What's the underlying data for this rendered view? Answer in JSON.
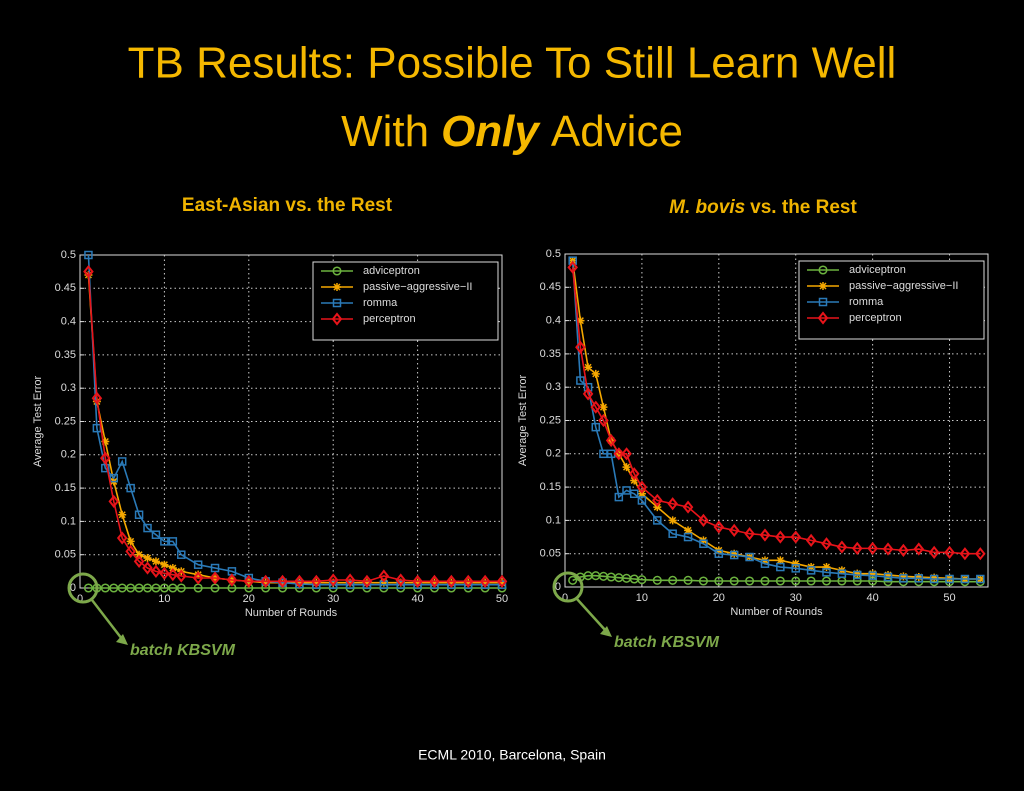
{
  "slide": {
    "title_line1": "TB Results: Possible To Still Learn Well",
    "title_line2": [
      "With",
      "Only",
      "Advice"
    ],
    "footer": "ECML 2010, Barcelona, Spain"
  },
  "chart_data": [
    {
      "type": "line",
      "title": [
        {
          "text": "East-Asian vs. the Rest"
        }
      ],
      "x_label": "Number of Rounds",
      "y_label": "Average Test Error",
      "annotation": "batch KBSVM",
      "xlim": [
        0,
        50
      ],
      "ylim": [
        0,
        0.5
      ],
      "xticks": [
        0,
        10,
        20,
        30,
        40,
        50
      ],
      "yticks": [
        0,
        0.05,
        0.1,
        0.15,
        0.2,
        0.25,
        0.3,
        0.35,
        0.4,
        0.45,
        0.5
      ],
      "grid": true,
      "legend": "upper right",
      "x": [
        1,
        2,
        3,
        4,
        5,
        6,
        7,
        8,
        9,
        10,
        11,
        12,
        14,
        16,
        18,
        20,
        22,
        24,
        26,
        28,
        30,
        32,
        34,
        36,
        38,
        40,
        42,
        44,
        46,
        48,
        50
      ],
      "series": [
        {
          "name": "adviceptron",
          "color": "#6cb33f",
          "marker": "circle",
          "values": [
            0,
            0,
            0,
            0,
            0,
            0,
            0,
            0,
            0,
            0,
            0,
            0,
            0,
            0,
            0,
            0,
            0,
            0,
            0,
            0,
            0,
            0,
            0,
            0,
            0,
            0,
            0,
            0,
            0,
            0,
            0
          ]
        },
        {
          "name": "passive−aggressive−II",
          "color": "#f5a800",
          "marker": "star",
          "values": [
            0.47,
            0.28,
            0.22,
            0.16,
            0.11,
            0.07,
            0.05,
            0.045,
            0.04,
            0.035,
            0.03,
            0.025,
            0.02,
            0.015,
            0.012,
            0.01,
            0.008,
            0.008,
            0.008,
            0.008,
            0.008,
            0.008,
            0.008,
            0.008,
            0.008,
            0.008,
            0.008,
            0.008,
            0.008,
            0.008,
            0.008
          ]
        },
        {
          "name": "romma",
          "color": "#2a7ab8",
          "marker": "square",
          "values": [
            0.5,
            0.24,
            0.18,
            0.165,
            0.19,
            0.15,
            0.11,
            0.09,
            0.08,
            0.07,
            0.07,
            0.05,
            0.035,
            0.03,
            0.025,
            0.015,
            0.01,
            0.008,
            0.006,
            0.005,
            0.005,
            0.005,
            0.005,
            0.005,
            0.005,
            0.005,
            0.005,
            0.005,
            0.005,
            0.005,
            0.005
          ]
        },
        {
          "name": "perceptron",
          "color": "#e8141a",
          "marker": "diamond",
          "values": [
            0.475,
            0.285,
            0.195,
            0.13,
            0.075,
            0.055,
            0.04,
            0.03,
            0.025,
            0.022,
            0.02,
            0.018,
            0.015,
            0.015,
            0.012,
            0.01,
            0.01,
            0.01,
            0.01,
            0.01,
            0.012,
            0.012,
            0.01,
            0.018,
            0.012,
            0.01,
            0.01,
            0.01,
            0.01,
            0.01,
            0.01
          ]
        }
      ]
    },
    {
      "type": "line",
      "title": [
        {
          "text": "M. bovis",
          "italic": true
        },
        {
          "text": "vs. the Rest"
        }
      ],
      "x_label": "Number of Rounds",
      "y_label": "Average Test Error",
      "annotation": "batch KBSVM",
      "xlim": [
        0,
        55
      ],
      "ylim": [
        0,
        0.5
      ],
      "xticks": [
        0,
        10,
        20,
        30,
        40,
        50
      ],
      "yticks": [
        0,
        0.05,
        0.1,
        0.15,
        0.2,
        0.25,
        0.3,
        0.35,
        0.4,
        0.45,
        0.5
      ],
      "grid": true,
      "legend": "upper right",
      "x": [
        1,
        2,
        3,
        4,
        5,
        6,
        7,
        8,
        9,
        10,
        12,
        14,
        16,
        18,
        20,
        22,
        24,
        26,
        28,
        30,
        32,
        34,
        36,
        38,
        40,
        42,
        44,
        46,
        48,
        50,
        52,
        54
      ],
      "series": [
        {
          "name": "adviceptron",
          "color": "#6cb33f",
          "marker": "circle",
          "values": [
            0.01,
            0.015,
            0.017,
            0.017,
            0.016,
            0.015,
            0.014,
            0.013,
            0.012,
            0.011,
            0.01,
            0.01,
            0.01,
            0.009,
            0.009,
            0.009,
            0.009,
            0.009,
            0.009,
            0.009,
            0.009,
            0.009,
            0.009,
            0.009,
            0.009,
            0.008,
            0.008,
            0.008,
            0.008,
            0.008,
            0.008,
            0.008
          ]
        },
        {
          "name": "passive−aggressive−II",
          "color": "#f5a800",
          "marker": "star",
          "values": [
            0.49,
            0.4,
            0.33,
            0.32,
            0.27,
            0.22,
            0.2,
            0.18,
            0.16,
            0.14,
            0.12,
            0.1,
            0.085,
            0.07,
            0.055,
            0.05,
            0.045,
            0.04,
            0.04,
            0.035,
            0.03,
            0.03,
            0.025,
            0.02,
            0.02,
            0.018,
            0.016,
            0.015,
            0.014,
            0.013,
            0.012,
            0.012
          ]
        },
        {
          "name": "romma",
          "color": "#2a7ab8",
          "marker": "square",
          "values": [
            0.49,
            0.31,
            0.3,
            0.24,
            0.2,
            0.2,
            0.135,
            0.145,
            0.14,
            0.13,
            0.1,
            0.08,
            0.075,
            0.065,
            0.05,
            0.048,
            0.045,
            0.035,
            0.03,
            0.028,
            0.025,
            0.022,
            0.02,
            0.018,
            0.017,
            0.015,
            0.013,
            0.013,
            0.012,
            0.012,
            0.012,
            0.012
          ]
        },
        {
          "name": "perceptron",
          "color": "#e8141a",
          "marker": "diamond",
          "values": [
            0.48,
            0.36,
            0.29,
            0.27,
            0.25,
            0.22,
            0.2,
            0.2,
            0.17,
            0.15,
            0.13,
            0.125,
            0.12,
            0.1,
            0.09,
            0.085,
            0.08,
            0.078,
            0.075,
            0.075,
            0.07,
            0.065,
            0.06,
            0.058,
            0.058,
            0.057,
            0.055,
            0.057,
            0.052,
            0.052,
            0.05,
            0.05
          ]
        }
      ]
    }
  ]
}
